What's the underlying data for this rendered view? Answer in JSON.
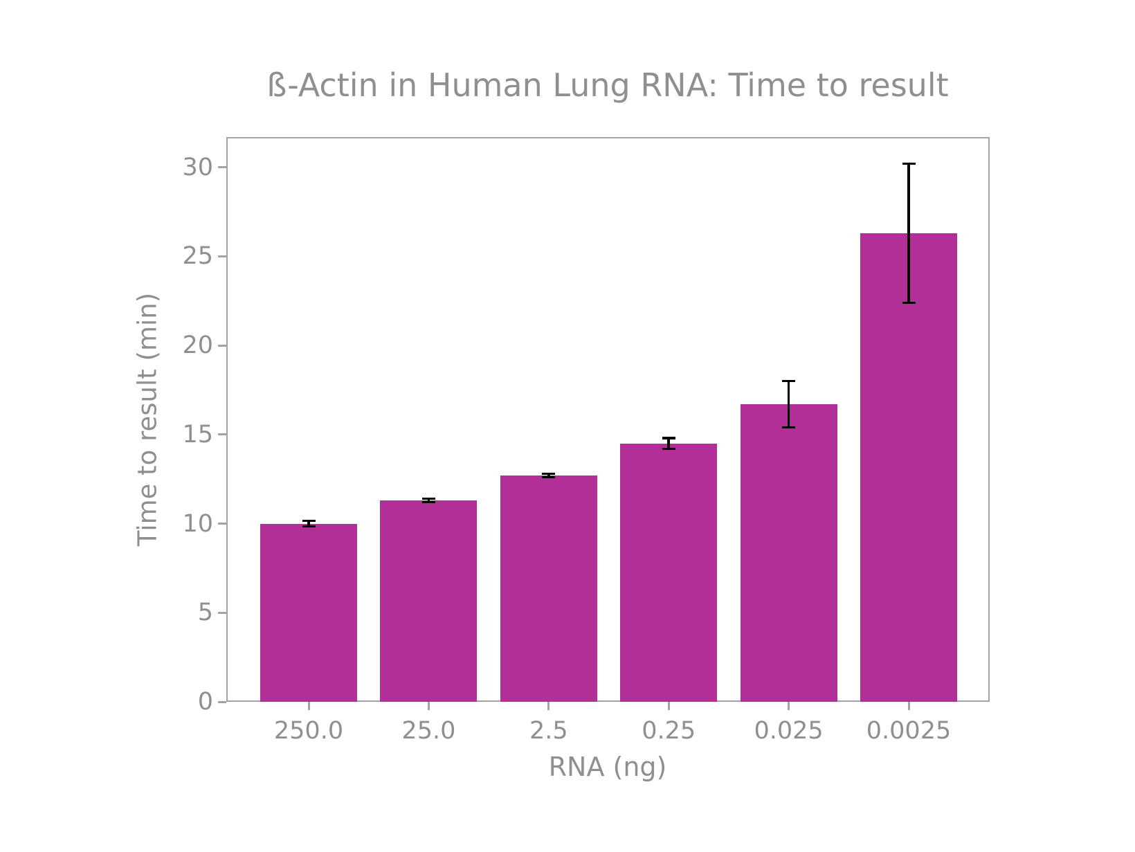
{
  "chart_data": {
    "type": "bar",
    "title": "ß-Actin in Human Lung RNA: Time to result",
    "xlabel": "RNA (ng)",
    "ylabel": "Time to result (min)",
    "categories": [
      "250.0",
      "25.0",
      "2.5",
      "0.25",
      "0.025",
      "0.0025"
    ],
    "values": [
      10.0,
      11.3,
      12.7,
      14.5,
      16.7,
      26.3
    ],
    "errors": [
      0.15,
      0.1,
      0.1,
      0.3,
      1.3,
      3.9
    ],
    "yticks": [
      0,
      5,
      10,
      15,
      20,
      25,
      30
    ],
    "ylim": [
      0,
      31.7
    ],
    "grid": "off",
    "legend": "none",
    "colors": {
      "bar": "#b22f98",
      "error": "#000000",
      "text": "#8f8f8f",
      "spine": "#a3a3a3",
      "background": "#ffffff"
    }
  }
}
